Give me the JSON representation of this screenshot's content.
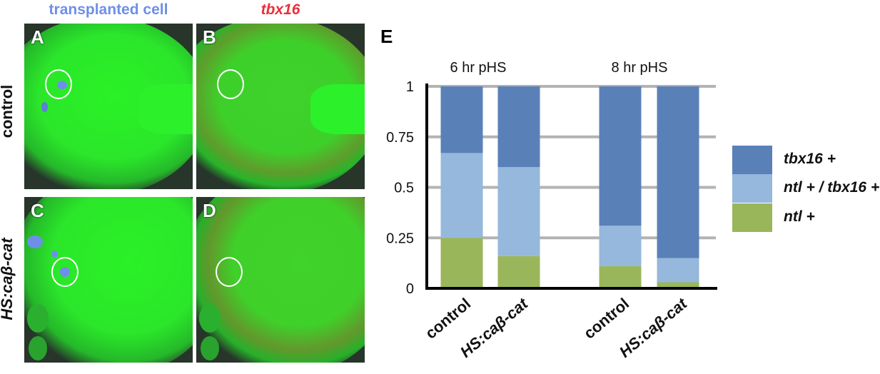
{
  "figure": {
    "col_headers": [
      {
        "text": "transplanted cell",
        "color": "#6e8fe8"
      },
      {
        "text": "tbx16",
        "color": "#e8303a"
      }
    ],
    "row_labels": [
      "control",
      "HS:caβ-cat"
    ],
    "panels": [
      {
        "letter": "A",
        "overlay": "cells"
      },
      {
        "letter": "B",
        "overlay": "red"
      },
      {
        "letter": "C",
        "overlay": "cells"
      },
      {
        "letter": "D",
        "overlay": "red"
      }
    ],
    "panel_e_letter": "E"
  },
  "chart_data": {
    "type": "bar",
    "stacked": true,
    "group_labels": [
      "6 hr pHS",
      "8 hr pHS"
    ],
    "categories": [
      "control",
      "HS:caβ-cat",
      "control",
      "HS:caβ-cat"
    ],
    "ylim": [
      0,
      1
    ],
    "yticks": [
      "0",
      "0.25",
      "0.5",
      "0.75",
      "1"
    ],
    "grid": true,
    "legend_position": "right",
    "series": [
      {
        "name": "ntl +",
        "color": "#9ab65a",
        "values": [
          0.25,
          0.16,
          0.11,
          0.03
        ]
      },
      {
        "name": "ntl + / tbx16 +",
        "color": "#95b8dc",
        "values": [
          0.42,
          0.44,
          0.2,
          0.12
        ]
      },
      {
        "name": "tbx16 +",
        "color": "#5a80b8",
        "values": [
          0.33,
          0.4,
          0.69,
          0.85
        ]
      }
    ],
    "legend_order": [
      2,
      1,
      0
    ]
  }
}
